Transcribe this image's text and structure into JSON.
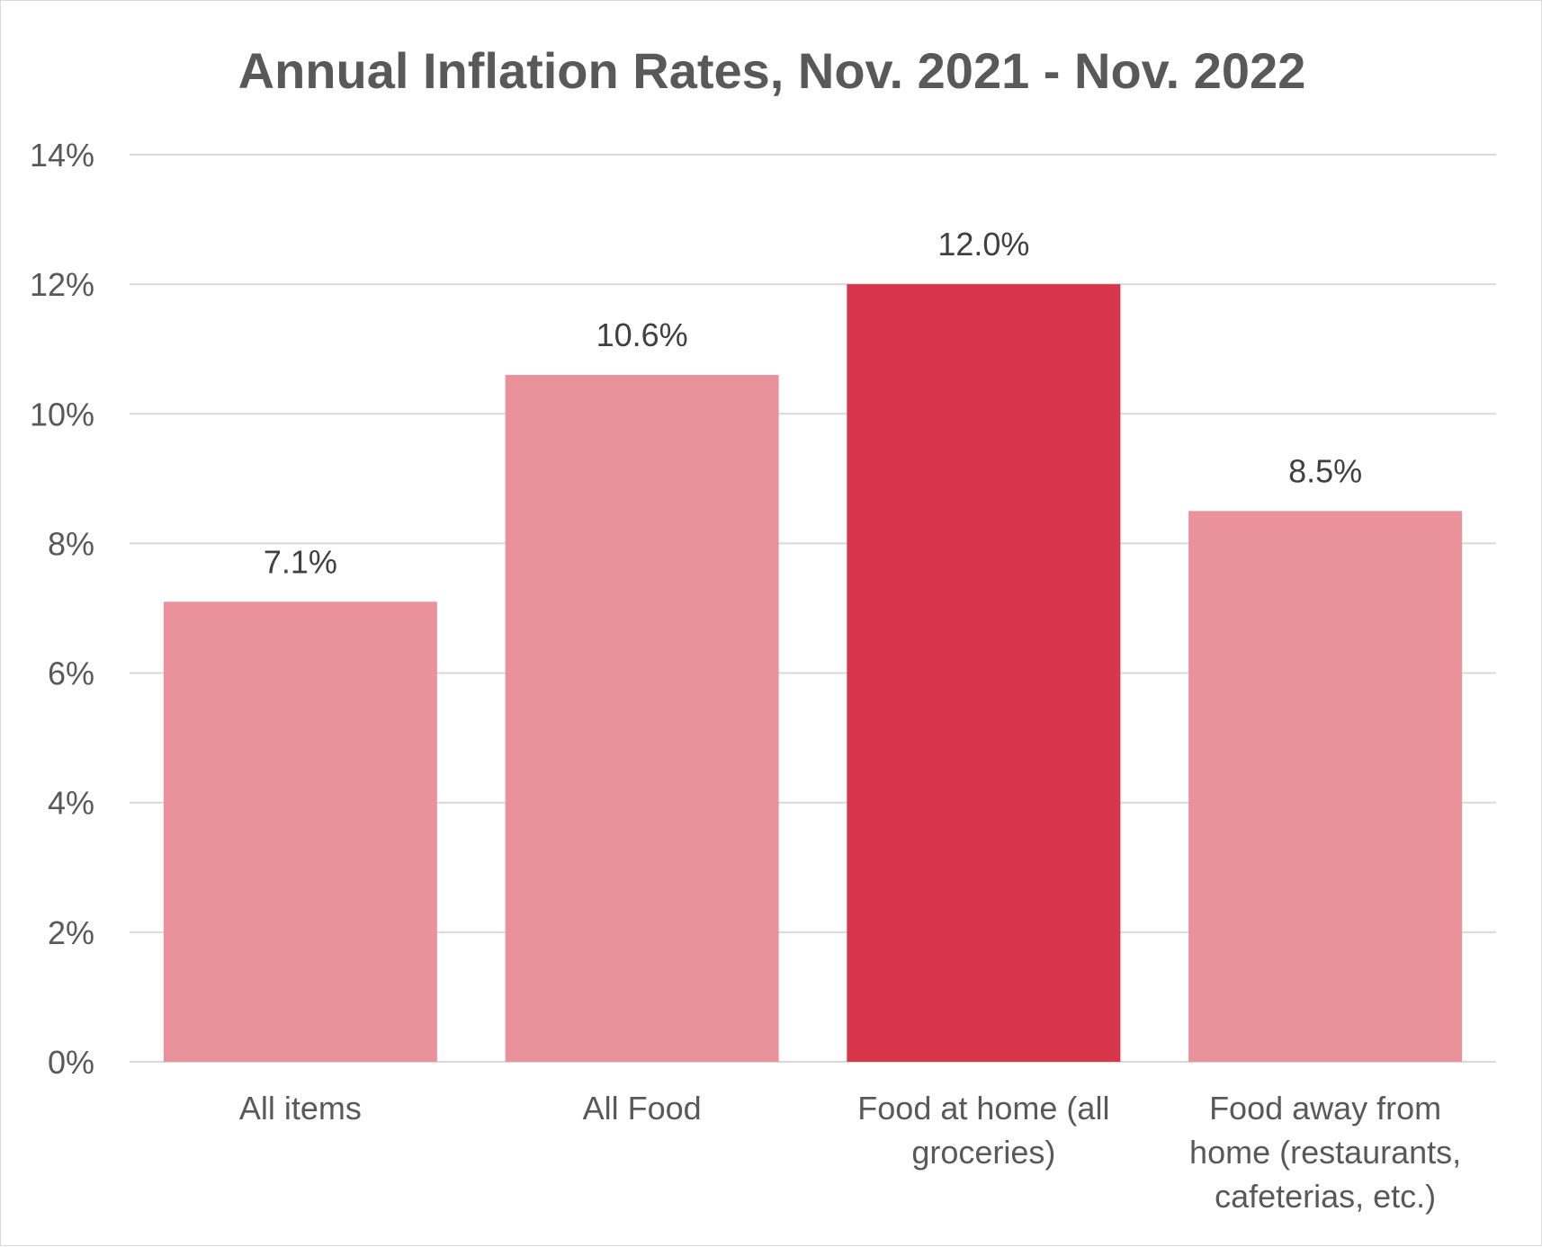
{
  "chart_data": {
    "type": "bar",
    "title": "Annual Inflation Rates, Nov. 2021 - Nov. 2022",
    "xlabel": "",
    "ylabel": "",
    "ylim": [
      0,
      14
    ],
    "yticks": [
      0,
      2,
      4,
      6,
      8,
      10,
      12,
      14
    ],
    "ytick_labels": [
      "0%",
      "2%",
      "4%",
      "6%",
      "8%",
      "10%",
      "12%",
      "14%"
    ],
    "grid": true,
    "legend": "none",
    "categories": [
      [
        "All items"
      ],
      [
        "All Food"
      ],
      [
        "Food at home (all",
        "groceries)"
      ],
      [
        "Food away from",
        "home (restaurants,",
        "cafeterias, etc.)"
      ]
    ],
    "values": [
      7.1,
      10.6,
      12.0,
      8.5
    ],
    "data_labels": [
      "7.1%",
      "10.6%",
      "12.0%",
      "8.5%"
    ],
    "highlight_index": 2,
    "colors": {
      "bar": "#e9929b",
      "highlight": "#d7364a",
      "grid": "#d9d9d9",
      "text": "#595959",
      "label": "#404040"
    }
  }
}
